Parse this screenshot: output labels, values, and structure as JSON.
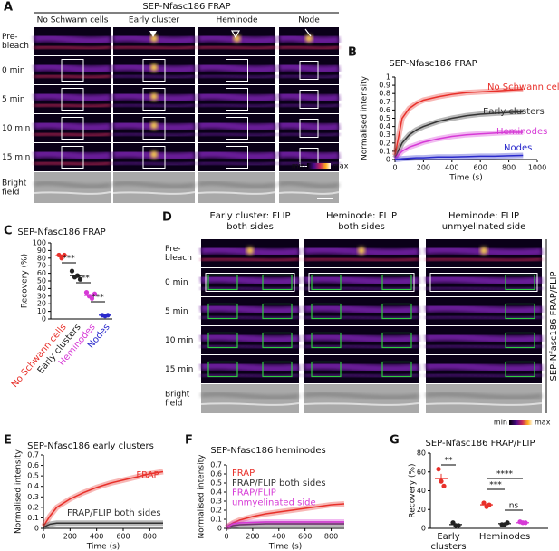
{
  "panels": [
    {
      "panel_label": "A",
      "title": "SEP-Nfasc186 FRAP",
      "columns": [
        "No Schwann cells",
        "Early cluster",
        "Heminode",
        "Node"
      ],
      "rows": [
        [
          "Pre-",
          "bleach"
        ],
        "0 min",
        "5 min",
        "10 min",
        "15 min",
        [
          "Bright",
          "field"
        ]
      ],
      "colorbar": [
        "min",
        "max"
      ]
    },
    {
      "panel_label": "D",
      "columns": [
        [
          "Early cluster: FLIP",
          "both sides"
        ],
        [
          "Heminode: FLIP",
          "both sides"
        ],
        [
          "Heminode: FLIP",
          "unmyelinated side"
        ]
      ],
      "rows": [
        [
          "Pre-",
          "bleach"
        ],
        "0 min",
        "5 min",
        "10 min",
        "15 min",
        [
          "Bright",
          "field"
        ]
      ],
      "side_label": "SEP-Nfasc186 FRAP/FLIP",
      "colorbar": [
        "min",
        "max"
      ]
    }
  ],
  "chart_data": [
    {
      "type": "line",
      "panel_label": "B",
      "title": "SEP-Nfasc186 FRAP",
      "x_label": "Time (s)",
      "y_label": "Normalised intensity",
      "xlim": [
        0,
        1000
      ],
      "xticks": [
        0,
        200,
        400,
        600,
        800,
        1000
      ],
      "ylim": [
        0,
        1
      ],
      "yticks": [
        0,
        0.1,
        0.2,
        0.3,
        0.4,
        0.5,
        0.6,
        0.7,
        0.8,
        0.9,
        1
      ],
      "x": [
        0,
        50,
        100,
        150,
        200,
        300,
        400,
        500,
        600,
        700,
        800,
        900
      ],
      "series": [
        {
          "name": "No Schwann cells",
          "color": "#e8302a",
          "values": [
            0.05,
            0.5,
            0.62,
            0.68,
            0.72,
            0.76,
            0.79,
            0.81,
            0.82,
            0.83,
            0.84,
            0.85
          ]
        },
        {
          "name": "Early clusters",
          "color": "#333333",
          "values": [
            0.02,
            0.2,
            0.3,
            0.36,
            0.4,
            0.46,
            0.5,
            0.53,
            0.55,
            0.56,
            0.57,
            0.58
          ]
        },
        {
          "name": "Heminodes",
          "color": "#d63ad6",
          "values": [
            0.01,
            0.1,
            0.15,
            0.18,
            0.21,
            0.25,
            0.28,
            0.3,
            0.31,
            0.32,
            0.33,
            0.33
          ]
        },
        {
          "name": "Nodes",
          "color": "#2a2acc",
          "values": [
            0,
            0.01,
            0.015,
            0.02,
            0.02,
            0.03,
            0.03,
            0.035,
            0.04,
            0.04,
            0.045,
            0.05
          ]
        }
      ]
    },
    {
      "type": "dot",
      "panel_label": "C",
      "title": "SEP-Nfasc186 FRAP",
      "y_label": "Recovery (%)",
      "ylim": [
        0,
        100
      ],
      "yticks": [
        0,
        10,
        20,
        30,
        40,
        50,
        60,
        70,
        80,
        90,
        100
      ],
      "groups": [
        {
          "label": "No Schwann cells",
          "items": [
            {
              "color": "#e8302a",
              "points": [
                84,
                80,
                84
              ],
              "mean": 83,
              "sem": 1.5
            }
          ]
        },
        {
          "label": "Early clusters",
          "items": [
            {
              "color": "#222222",
              "points": [
                63,
                55,
                57,
                52
              ],
              "mean": 57,
              "sem": 2.5
            }
          ]
        },
        {
          "label": "Heminodes",
          "items": [
            {
              "color": "#d63ad6",
              "points": [
                35,
                30,
                27,
                33
              ],
              "mean": 31,
              "sem": 2
            }
          ]
        },
        {
          "label": "Nodes",
          "items": [
            {
              "color": "#2a2acc",
              "points": [
                5,
                4,
                5
              ],
              "mean": 5,
              "sem": 0.4
            }
          ]
        }
      ],
      "annotations": [
        "***",
        "***",
        "***"
      ]
    },
    {
      "type": "line",
      "panel_label": "E",
      "title": "SEP-Nfasc186 early clusters",
      "x_label": "Time (s)",
      "y_label": "Normalised intensity",
      "xlim": [
        0,
        900
      ],
      "xticks": [
        0,
        200,
        400,
        600,
        800
      ],
      "ylim": [
        0,
        0.7
      ],
      "yticks": [
        0,
        0.1,
        0.2,
        0.3,
        0.4,
        0.5,
        0.6,
        0.7
      ],
      "x": [
        0,
        50,
        100,
        200,
        300,
        400,
        500,
        600,
        700,
        800,
        900
      ],
      "series": [
        {
          "name": "FRAP",
          "color": "#e8302a",
          "values": [
            0.02,
            0.12,
            0.2,
            0.28,
            0.34,
            0.39,
            0.43,
            0.46,
            0.49,
            0.52,
            0.54
          ]
        },
        {
          "name": "FRAP/FLIP both sides",
          "color": "#333333",
          "values": [
            0.01,
            0.04,
            0.05,
            0.05,
            0.05,
            0.05,
            0.05,
            0.05,
            0.05,
            0.05,
            0.05
          ]
        }
      ]
    },
    {
      "type": "line",
      "panel_label": "F",
      "title": "SEP-Nfasc186 heminodes",
      "x_label": "Time (s)",
      "y_label": "Normalised intensity",
      "xlim": [
        0,
        900
      ],
      "xticks": [
        0,
        200,
        400,
        600,
        800
      ],
      "ylim": [
        0,
        0.7
      ],
      "yticks": [
        0,
        0.1,
        0.2,
        0.3,
        0.4,
        0.5,
        0.6,
        0.7
      ],
      "x": [
        0,
        50,
        100,
        200,
        300,
        400,
        500,
        600,
        700,
        800,
        900
      ],
      "series": [
        {
          "name": "FRAP",
          "color": "#e8302a",
          "values": [
            0.01,
            0.06,
            0.09,
            0.13,
            0.16,
            0.18,
            0.2,
            0.22,
            0.24,
            0.26,
            0.27
          ]
        },
        {
          "name": "FRAP/FLIP both sides",
          "color": "#333333",
          "values": [
            0.01,
            0.03,
            0.04,
            0.045,
            0.05,
            0.05,
            0.05,
            0.05,
            0.05,
            0.05,
            0.05
          ]
        },
        {
          "name": [
            "FRAP/FLIP",
            "unmyelinated side"
          ],
          "color": "#d63ad6",
          "values": [
            0.01,
            0.05,
            0.06,
            0.065,
            0.07,
            0.07,
            0.07,
            0.07,
            0.07,
            0.07,
            0.07
          ]
        }
      ]
    },
    {
      "type": "dot",
      "panel_label": "G",
      "title": "SEP-Nfasc186 FRAP/FLIP",
      "y_label": "Recovery (%)",
      "ylim": [
        0,
        80
      ],
      "yticks": [
        0,
        20,
        40,
        60,
        80
      ],
      "groups": [
        {
          "label": [
            "Early",
            "clusters"
          ],
          "items": [
            {
              "color": "#e8302a",
              "points": [
                63,
                50,
                45
              ],
              "mean": 53,
              "sem": 5
            },
            {
              "color": "#222222",
              "points": [
                6,
                3,
                3
              ],
              "mean": 4,
              "sem": 1
            }
          ]
        },
        {
          "label": [
            "Heminodes"
          ],
          "items": [
            {
              "color": "#e8302a",
              "points": [
                27,
                23,
                25
              ],
              "mean": 25,
              "sem": 1.2
            },
            {
              "color": "#222222",
              "points": [
                4,
                4,
                6
              ],
              "mean": 5,
              "sem": 0.7
            },
            {
              "color": "#d63ad6",
              "points": [
                7,
                6,
                6
              ],
              "mean": 6,
              "sem": 0.4
            }
          ]
        }
      ],
      "annotations": [
        "**",
        "****",
        "***",
        "ns"
      ]
    }
  ]
}
